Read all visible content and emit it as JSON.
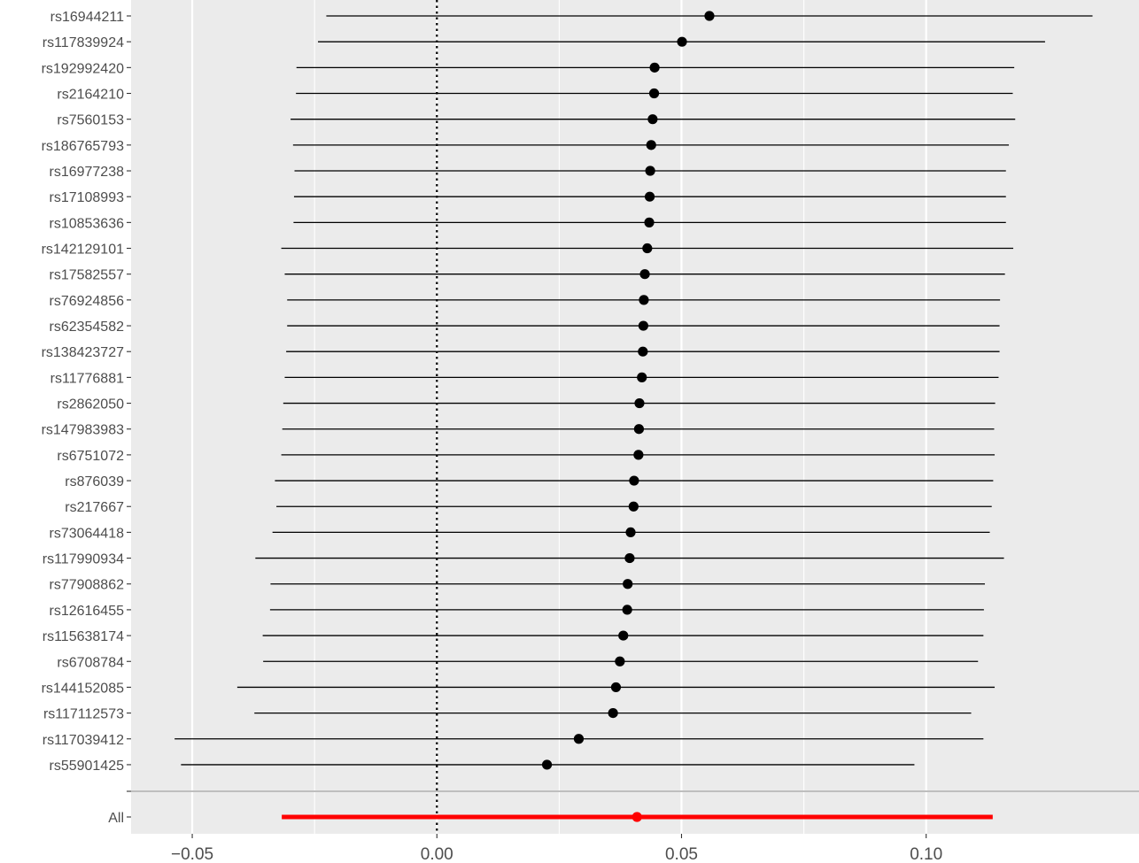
{
  "chart_data": {
    "type": "forest",
    "title": "",
    "xlabel": "",
    "ylabel": "",
    "xlim": [
      -0.0625,
      0.1435
    ],
    "x_ticks": [
      -0.05,
      0.0,
      0.05,
      0.1
    ],
    "x_tick_labels": [
      "−0.05",
      "0.00",
      "0.05",
      "0.10"
    ],
    "reference_line": 0.0,
    "grid": true,
    "colors": {
      "panel": "#ebebeb",
      "grid": "#ffffff",
      "point": "#000000",
      "summary": "#ff0000",
      "separator": "#bebebe",
      "tick_text": "#4d4d4d"
    },
    "rows": [
      {
        "label": "rs16944211",
        "estimate": 0.0557,
        "lower": -0.0226,
        "upper": 0.134
      },
      {
        "label": "rs117839924",
        "estimate": 0.0501,
        "lower": -0.0243,
        "upper": 0.1243
      },
      {
        "label": "rs192992420",
        "estimate": 0.0445,
        "lower": -0.0287,
        "upper": 0.118
      },
      {
        "label": "rs2164210",
        "estimate": 0.0444,
        "lower": -0.0288,
        "upper": 0.1177
      },
      {
        "label": "rs7560153",
        "estimate": 0.0441,
        "lower": -0.0299,
        "upper": 0.1182
      },
      {
        "label": "rs186765793",
        "estimate": 0.0438,
        "lower": -0.0294,
        "upper": 0.1169
      },
      {
        "label": "rs16977238",
        "estimate": 0.0436,
        "lower": -0.0291,
        "upper": 0.1163
      },
      {
        "label": "rs17108993",
        "estimate": 0.0435,
        "lower": -0.0292,
        "upper": 0.1163
      },
      {
        "label": "rs10853636",
        "estimate": 0.0434,
        "lower": -0.0293,
        "upper": 0.1163
      },
      {
        "label": "rs142129101",
        "estimate": 0.043,
        "lower": -0.0318,
        "upper": 0.1178
      },
      {
        "label": "rs17582557",
        "estimate": 0.0425,
        "lower": -0.0311,
        "upper": 0.1161
      },
      {
        "label": "rs76924856",
        "estimate": 0.0423,
        "lower": -0.0306,
        "upper": 0.1151
      },
      {
        "label": "rs62354582",
        "estimate": 0.0422,
        "lower": -0.0306,
        "upper": 0.115
      },
      {
        "label": "rs138423727",
        "estimate": 0.0421,
        "lower": -0.0308,
        "upper": 0.115
      },
      {
        "label": "rs11776881",
        "estimate": 0.0419,
        "lower": -0.0311,
        "upper": 0.1148
      },
      {
        "label": "rs2862050",
        "estimate": 0.0414,
        "lower": -0.0314,
        "upper": 0.1141
      },
      {
        "label": "rs147983983",
        "estimate": 0.0413,
        "lower": -0.0316,
        "upper": 0.1139
      },
      {
        "label": "rs6751072",
        "estimate": 0.0412,
        "lower": -0.0318,
        "upper": 0.114
      },
      {
        "label": "rs876039",
        "estimate": 0.0403,
        "lower": -0.0331,
        "upper": 0.1137
      },
      {
        "label": "rs217667",
        "estimate": 0.0402,
        "lower": -0.0328,
        "upper": 0.1134
      },
      {
        "label": "rs73064418",
        "estimate": 0.0396,
        "lower": -0.0336,
        "upper": 0.113
      },
      {
        "label": "rs117990934",
        "estimate": 0.0394,
        "lower": -0.0371,
        "upper": 0.1159
      },
      {
        "label": "rs77908862",
        "estimate": 0.039,
        "lower": -0.034,
        "upper": 0.112
      },
      {
        "label": "rs12616455",
        "estimate": 0.0389,
        "lower": -0.0341,
        "upper": 0.1118
      },
      {
        "label": "rs115638174",
        "estimate": 0.0381,
        "lower": -0.0356,
        "upper": 0.1117
      },
      {
        "label": "rs6708784",
        "estimate": 0.0374,
        "lower": -0.0355,
        "upper": 0.1106
      },
      {
        "label": "rs144152085",
        "estimate": 0.0366,
        "lower": -0.0408,
        "upper": 0.114
      },
      {
        "label": "rs117112573",
        "estimate": 0.036,
        "lower": -0.0373,
        "upper": 0.1092
      },
      {
        "label": "rs117039412",
        "estimate": 0.029,
        "lower": -0.0536,
        "upper": 0.1117
      },
      {
        "label": "rs55901425",
        "estimate": 0.0225,
        "lower": -0.0523,
        "upper": 0.0976
      }
    ],
    "summary": {
      "label": "All",
      "estimate": 0.0409,
      "lower": -0.0317,
      "upper": 0.1136
    }
  }
}
